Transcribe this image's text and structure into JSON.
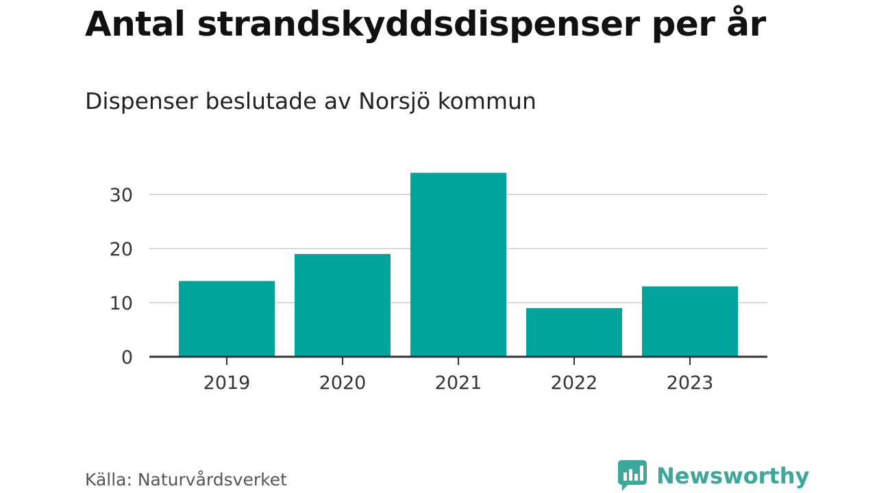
{
  "title": "Antal strandskyddsdispenser per år",
  "subtitle": "Dispenser beslutade av Norsjö kommun",
  "source": "Källa: Naturvårdsverket",
  "brand": {
    "name": "Newsworthy",
    "icon": "newsworthy-logo-icon"
  },
  "colors": {
    "bar": "#00a49a",
    "grid": "#d9d9d9",
    "axis": "#333333",
    "tick_text": "#333333",
    "brand": "#3aa89a"
  },
  "chart_data": {
    "type": "bar",
    "title": "Antal strandskyddsdispenser per år",
    "subtitle": "Dispenser beslutade av Norsjö kommun",
    "xlabel": "",
    "ylabel": "",
    "categories": [
      "2019",
      "2020",
      "2021",
      "2022",
      "2023"
    ],
    "values": [
      14,
      19,
      34,
      9,
      13
    ],
    "ylim": [
      0,
      34
    ],
    "yticks": [
      0,
      10,
      20,
      30
    ],
    "grid": true,
    "legend": "none"
  }
}
